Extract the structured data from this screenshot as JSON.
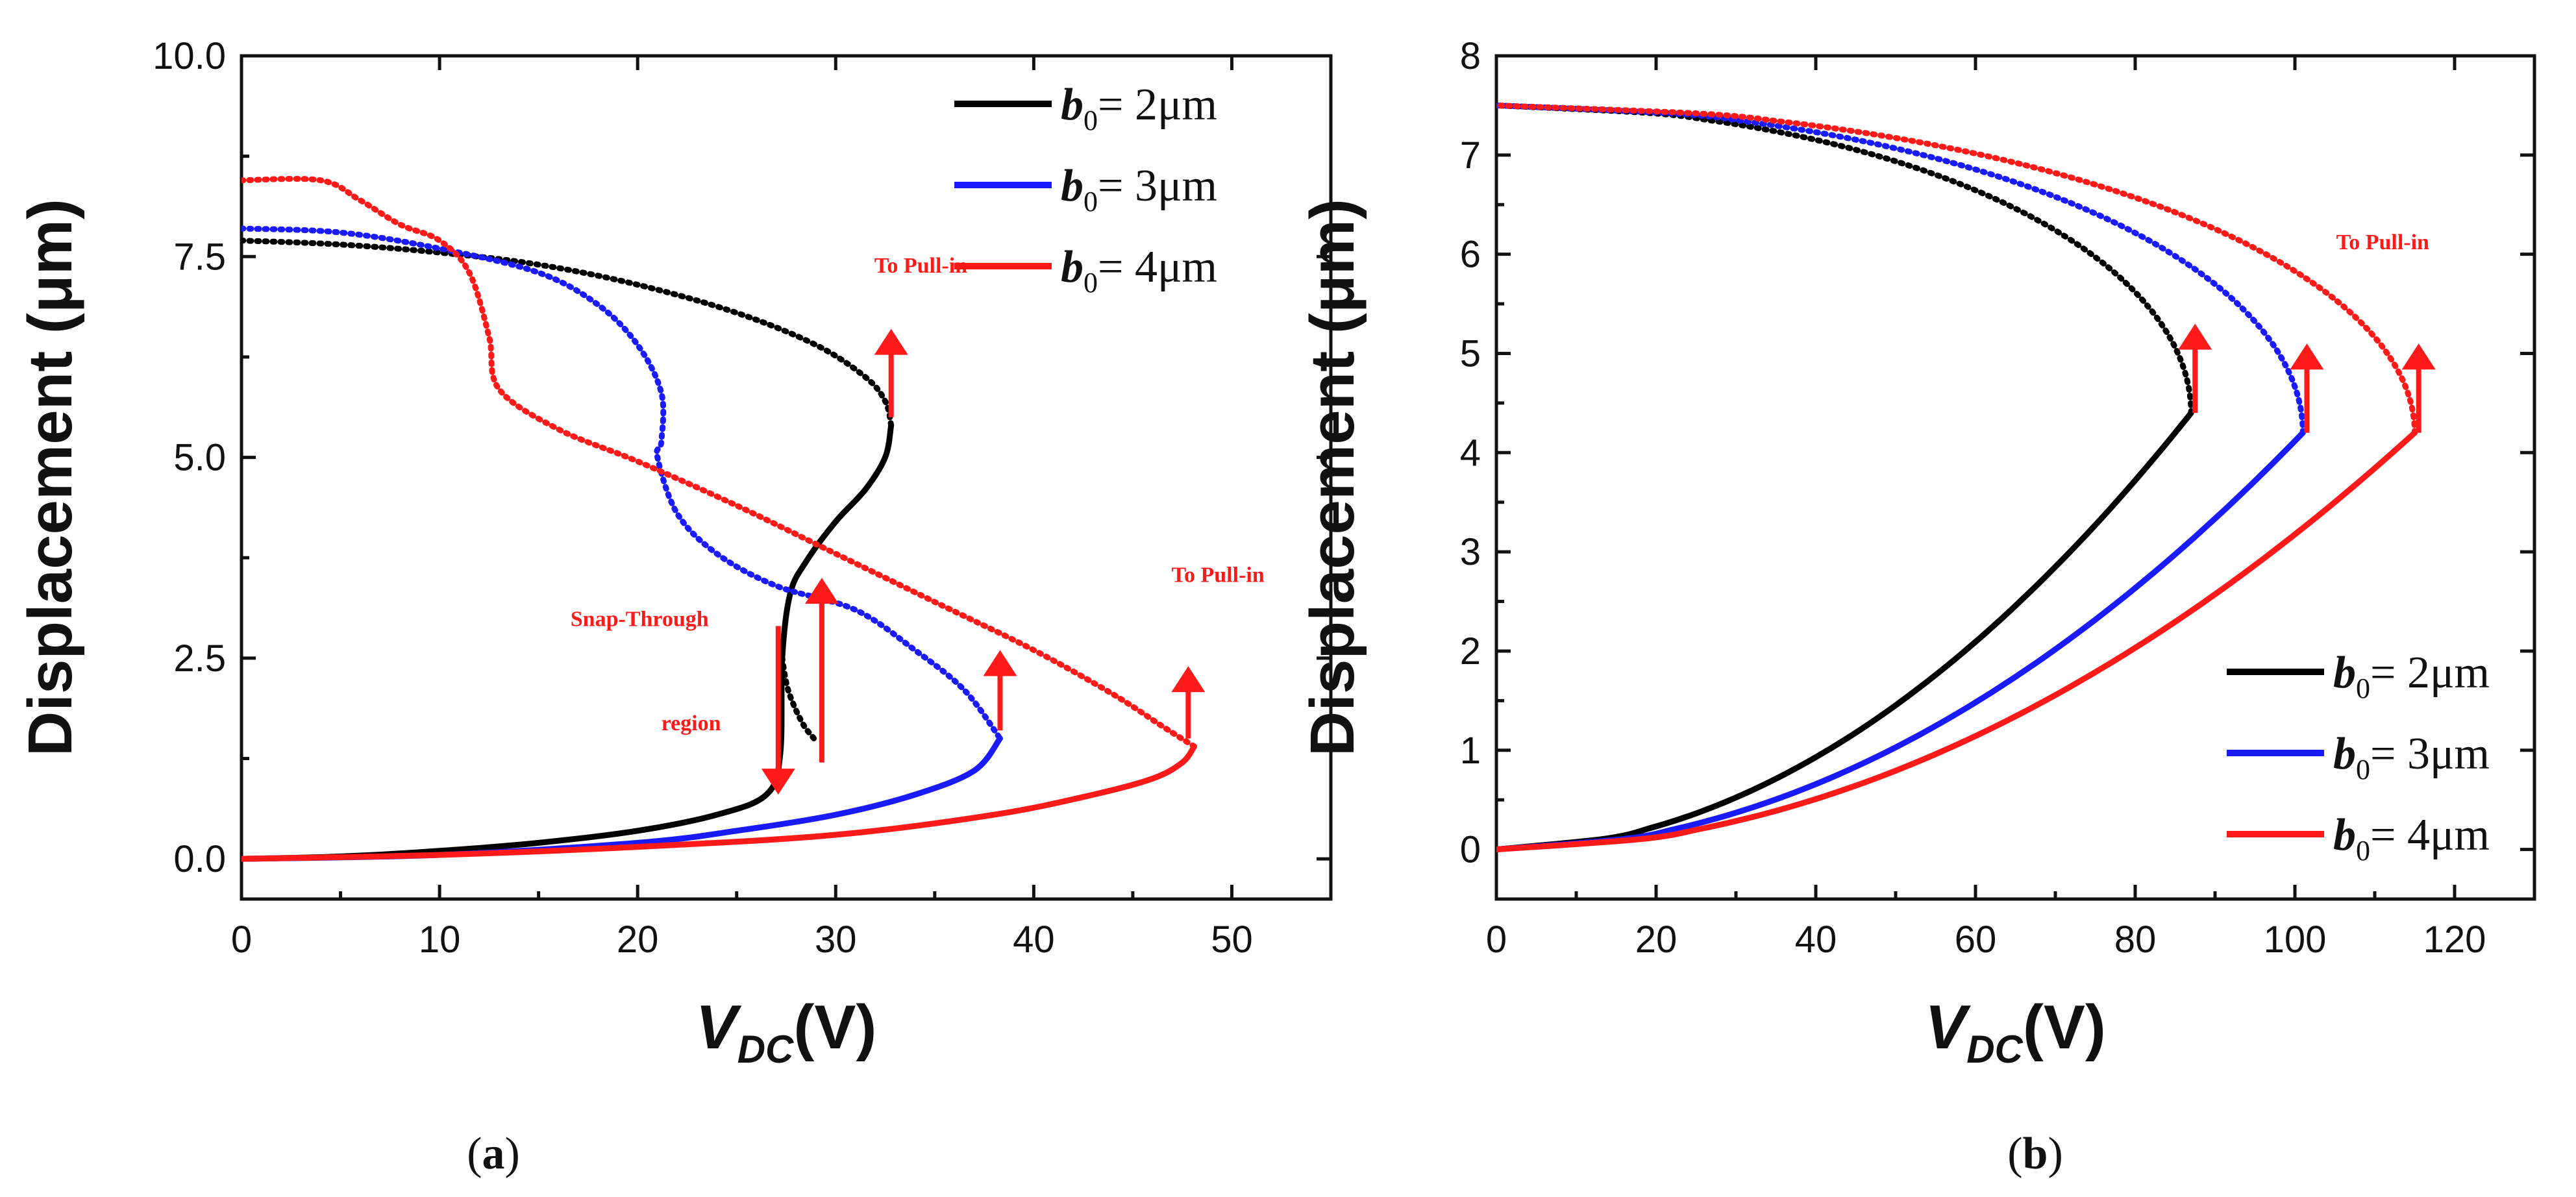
{
  "chart_data": [
    {
      "id": "a",
      "type": "line",
      "panel_label": "a",
      "xlabel_main": "V",
      "xlabel_sub": "DC",
      "xlabel_unit": "(V)",
      "ylabel": "Displacement (μm)",
      "xlim": [
        0,
        55
      ],
      "ylim": [
        -0.5,
        10.0
      ],
      "xticks": [
        0,
        10,
        20,
        30,
        40,
        50
      ],
      "xtick_labels": [
        "0",
        "10",
        "20",
        "30",
        "40",
        "50"
      ],
      "yticks": [
        0,
        2.5,
        5,
        7.5,
        10
      ],
      "ytick_labels": [
        "0.0",
        "2.5",
        "5.0",
        "7.5",
        "10.0"
      ],
      "legend": {
        "position": "top-right",
        "entries": [
          {
            "var": "b",
            "sub": "0",
            "text": "= 2μm",
            "color": "#000000"
          },
          {
            "var": "b",
            "sub": "0",
            "text": "= 3μm",
            "color": "#1a1aff"
          },
          {
            "var": "b",
            "sub": "0",
            "text": "= 4μm",
            "color": "#ff1a1a"
          }
        ]
      },
      "series": [
        {
          "name": "b0 = 2μm",
          "color": "#000000",
          "stable": [
            [
              0,
              0
            ],
            [
              5,
              0.03
            ],
            [
              10,
              0.1
            ],
            [
              15,
              0.2
            ],
            [
              20,
              0.35
            ],
            [
              24,
              0.55
            ],
            [
              26.5,
              0.8
            ],
            [
              27.2,
              1.3
            ],
            [
              27.3,
              2.5
            ],
            [
              27.7,
              3.3
            ],
            [
              28.5,
              3.7
            ],
            [
              30,
              4.2
            ],
            [
              31.5,
              4.6
            ],
            [
              32.5,
              5.0
            ],
            [
              32.8,
              5.4
            ]
          ],
          "unstable": [
            [
              0,
              7.7
            ],
            [
              5,
              7.65
            ],
            [
              10,
              7.55
            ],
            [
              15,
              7.4
            ],
            [
              20,
              7.15
            ],
            [
              25,
              6.8
            ],
            [
              29,
              6.4
            ],
            [
              31.5,
              6.0
            ],
            [
              32.5,
              5.7
            ],
            [
              32.8,
              5.4
            ]
          ],
          "unstable2": [
            [
              27.3,
              2.5
            ],
            [
              27.6,
              2.1
            ],
            [
              28.3,
              1.7
            ],
            [
              28.9,
              1.5
            ]
          ]
        },
        {
          "name": "b0 = 3μm",
          "color": "#1a1aff",
          "stable": [
            [
              0,
              0
            ],
            [
              10,
              0.05
            ],
            [
              20,
              0.2
            ],
            [
              25,
              0.35
            ],
            [
              30,
              0.55
            ],
            [
              34,
              0.8
            ],
            [
              37,
              1.1
            ],
            [
              38.3,
              1.5
            ]
          ],
          "unstable": [
            [
              0,
              7.85
            ],
            [
              5,
              7.8
            ],
            [
              10,
              7.6
            ],
            [
              15,
              7.3
            ],
            [
              18,
              6.9
            ],
            [
              20,
              6.4
            ],
            [
              21.2,
              5.8
            ],
            [
              21.2,
              5.2
            ],
            [
              21,
              5.0
            ],
            [
              22,
              4.3
            ],
            [
              24,
              3.8
            ],
            [
              27,
              3.4
            ],
            [
              31,
              3.1
            ],
            [
              34,
              2.6
            ],
            [
              36.5,
              2.1
            ],
            [
              38.3,
              1.5
            ]
          ]
        },
        {
          "name": "b0 = 4μm",
          "color": "#ff1a1a",
          "stable": [
            [
              0,
              0
            ],
            [
              10,
              0.05
            ],
            [
              20,
              0.15
            ],
            [
              30,
              0.3
            ],
            [
              38,
              0.55
            ],
            [
              43,
              0.8
            ],
            [
              46,
              1.0
            ],
            [
              47.5,
              1.2
            ],
            [
              48.1,
              1.4
            ]
          ],
          "unstable": [
            [
              0,
              8.45
            ],
            [
              4,
              8.45
            ],
            [
              6,
              8.2
            ],
            [
              8,
              7.9
            ],
            [
              10,
              7.7
            ],
            [
              11.5,
              7.3
            ],
            [
              12.5,
              6.5
            ],
            [
              13,
              5.85
            ],
            [
              16,
              5.35
            ],
            [
              20,
              4.95
            ],
            [
              25,
              4.4
            ],
            [
              30,
              3.8
            ],
            [
              35,
              3.2
            ],
            [
              40,
              2.6
            ],
            [
              44,
              2.05
            ],
            [
              46.5,
              1.65
            ],
            [
              48.1,
              1.4
            ]
          ]
        }
      ],
      "arrows": [
        {
          "x": 32.8,
          "y_from": 5.5,
          "y_to": 6.6,
          "dir": "up"
        },
        {
          "x": 27.1,
          "y_from": 2.9,
          "y_to": 0.8,
          "dir": "down"
        },
        {
          "x": 29.3,
          "y_from": 1.2,
          "y_to": 3.5,
          "dir": "up"
        },
        {
          "x": 38.3,
          "y_from": 1.6,
          "y_to": 2.6,
          "dir": "up"
        },
        {
          "x": 47.8,
          "y_from": 1.5,
          "y_to": 2.4,
          "dir": "up"
        }
      ],
      "annotations": [
        {
          "text": "To Pull-in",
          "x": 34.3,
          "y": 7.3
        },
        {
          "text": "To Pull-in",
          "x": 49.3,
          "y": 3.45
        },
        {
          "text": "Snap-Through",
          "x": 20.1,
          "y": 2.9
        },
        {
          "text": "region",
          "x": 22.7,
          "y": 1.6
        }
      ]
    },
    {
      "id": "b",
      "type": "line",
      "panel_label": "b",
      "xlabel_main": "V",
      "xlabel_sub": "DC",
      "xlabel_unit": "(V)",
      "ylabel": "Displacement (μm)",
      "xlim": [
        0,
        130
      ],
      "ylim": [
        -0.5,
        8
      ],
      "xticks": [
        0,
        20,
        40,
        60,
        80,
        100,
        120
      ],
      "xtick_labels": [
        "0",
        "20",
        "40",
        "60",
        "80",
        "100",
        "120"
      ],
      "yticks": [
        0,
        1,
        2,
        3,
        4,
        5,
        6,
        7,
        8
      ],
      "ytick_labels": [
        "0",
        "1",
        "2",
        "3",
        "4",
        "5",
        "6",
        "7",
        "8"
      ],
      "legend": {
        "position": "bottom-right",
        "entries": [
          {
            "var": "b",
            "sub": "0",
            "text": "= 2μm",
            "color": "#000000"
          },
          {
            "var": "b",
            "sub": "0",
            "text": "= 3μm",
            "color": "#1a1aff"
          },
          {
            "var": "b",
            "sub": "0",
            "text": "= 4μm",
            "color": "#ff1a1a"
          }
        ]
      },
      "series": [
        {
          "name": "b0 = 2μm",
          "color": "#000000",
          "vmax": 87,
          "ymin_unstable": 4.4
        },
        {
          "name": "b0 = 3μm",
          "color": "#1a1aff",
          "vmax": 101,
          "ymin_unstable": 4.2
        },
        {
          "name": "b0 = 4μm",
          "color": "#ff1a1a",
          "vmax": 115,
          "ymin_unstable": 4.2
        }
      ],
      "y_top": 7.5,
      "arrows": [
        {
          "x": 87.5,
          "y_from": 4.4,
          "y_to": 5.3,
          "dir": "up"
        },
        {
          "x": 101.5,
          "y_from": 4.2,
          "y_to": 5.1,
          "dir": "up"
        },
        {
          "x": 115.5,
          "y_from": 4.2,
          "y_to": 5.1,
          "dir": "up"
        }
      ],
      "annotations": [
        {
          "text": "To Pull-in",
          "x": 111,
          "y": 6.05
        }
      ]
    }
  ]
}
